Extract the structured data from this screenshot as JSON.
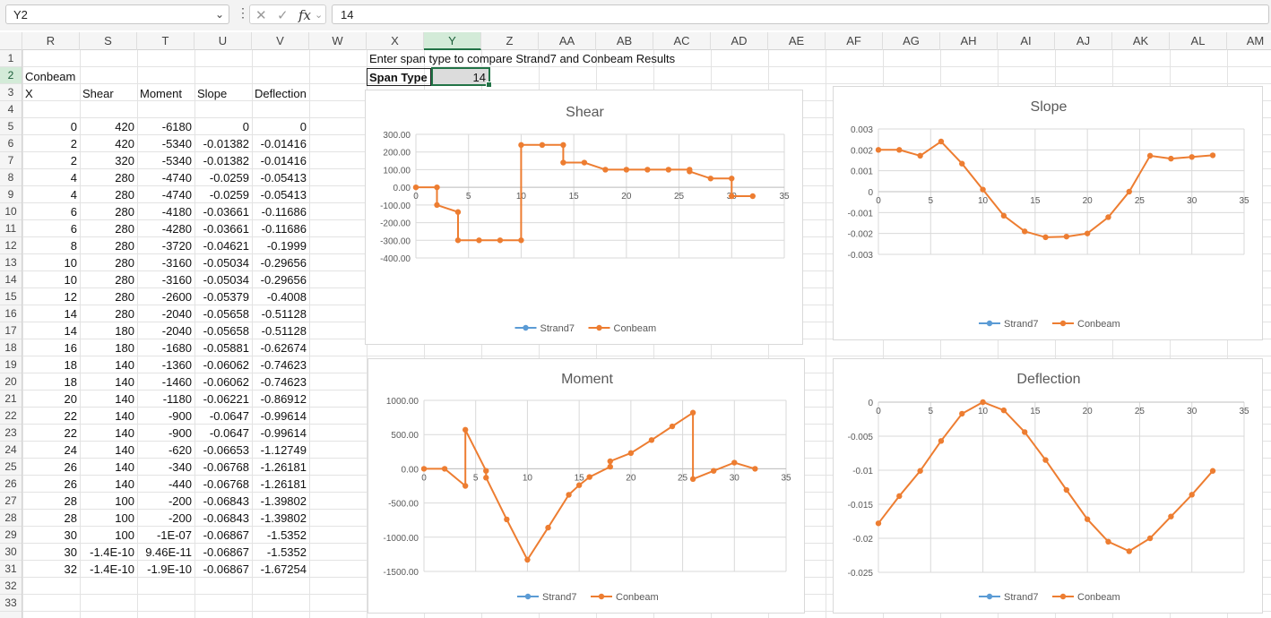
{
  "formula_bar": {
    "name_box": "Y2",
    "formula": "14",
    "fx_label": "fx"
  },
  "column_headers": [
    "R",
    "S",
    "T",
    "U",
    "V",
    "W",
    "X",
    "Y",
    "Z",
    "AA",
    "AB",
    "AC",
    "AD",
    "AE",
    "AF",
    "AG",
    "AH",
    "AI",
    "AJ",
    "AK",
    "AL",
    "AM"
  ],
  "selected_column": "Y",
  "row_numbers": [
    "1",
    "2",
    "3",
    "4",
    "5",
    "6",
    "7",
    "8",
    "9",
    "10",
    "11",
    "12",
    "13",
    "14",
    "15",
    "16",
    "17",
    "18",
    "19",
    "20",
    "21",
    "22",
    "23",
    "24",
    "25",
    "26",
    "27",
    "28",
    "29",
    "30",
    "31",
    "32",
    "33"
  ],
  "selected_row": "2",
  "sheet": {
    "section_title": "Conbeam",
    "headers": {
      "x": "X",
      "shear": "Shear",
      "moment": "Moment",
      "slope": "Slope",
      "deflection": "Deflection"
    },
    "rows": [
      [
        "0",
        "420",
        "-6180",
        "0",
        "0"
      ],
      [
        "2",
        "420",
        "-5340",
        "-0.01382",
        "-0.01416"
      ],
      [
        "2",
        "320",
        "-5340",
        "-0.01382",
        "-0.01416"
      ],
      [
        "4",
        "280",
        "-4740",
        "-0.0259",
        "-0.05413"
      ],
      [
        "4",
        "280",
        "-4740",
        "-0.0259",
        "-0.05413"
      ],
      [
        "6",
        "280",
        "-4180",
        "-0.03661",
        "-0.11686"
      ],
      [
        "6",
        "280",
        "-4280",
        "-0.03661",
        "-0.11686"
      ],
      [
        "8",
        "280",
        "-3720",
        "-0.04621",
        "-0.1999"
      ],
      [
        "10",
        "280",
        "-3160",
        "-0.05034",
        "-0.29656"
      ],
      [
        "10",
        "280",
        "-3160",
        "-0.05034",
        "-0.29656"
      ],
      [
        "12",
        "280",
        "-2600",
        "-0.05379",
        "-0.4008"
      ],
      [
        "14",
        "280",
        "-2040",
        "-0.05658",
        "-0.51128"
      ],
      [
        "14",
        "180",
        "-2040",
        "-0.05658",
        "-0.51128"
      ],
      [
        "16",
        "180",
        "-1680",
        "-0.05881",
        "-0.62674"
      ],
      [
        "18",
        "140",
        "-1360",
        "-0.06062",
        "-0.74623"
      ],
      [
        "18",
        "140",
        "-1460",
        "-0.06062",
        "-0.74623"
      ],
      [
        "20",
        "140",
        "-1180",
        "-0.06221",
        "-0.86912"
      ],
      [
        "22",
        "140",
        "-900",
        "-0.0647",
        "-0.99614"
      ],
      [
        "22",
        "140",
        "-900",
        "-0.0647",
        "-0.99614"
      ],
      [
        "24",
        "140",
        "-620",
        "-0.06653",
        "-1.12749"
      ],
      [
        "26",
        "140",
        "-340",
        "-0.06768",
        "-1.26181"
      ],
      [
        "26",
        "140",
        "-440",
        "-0.06768",
        "-1.26181"
      ],
      [
        "28",
        "100",
        "-200",
        "-0.06843",
        "-1.39802"
      ],
      [
        "28",
        "100",
        "-200",
        "-0.06843",
        "-1.39802"
      ],
      [
        "30",
        "100",
        "-1E-07",
        "-0.06867",
        "-1.5352"
      ],
      [
        "30",
        "-1.4E-10",
        "9.46E-11",
        "-0.06867",
        "-1.5352"
      ],
      [
        "32",
        "-1.4E-10",
        "-1.9E-10",
        "-0.06867",
        "-1.67254"
      ]
    ],
    "instruction": "Enter span type to compare Strand7 and Conbeam Results",
    "span_type_label": "Span Type",
    "span_type_value": "14"
  },
  "colors": {
    "strand7": "#5b9bd5",
    "conbeam": "#ed7d31",
    "selection": "#217346"
  },
  "chart_data": [
    {
      "type": "line",
      "title": "Shear",
      "xlim": [
        0,
        35
      ],
      "xticks": [
        0,
        5,
        10,
        15,
        20,
        25,
        30,
        35
      ],
      "ylim": [
        -400,
        300
      ],
      "yticks": [
        -400,
        -300,
        -200,
        -100,
        0,
        100,
        200,
        300
      ],
      "ytick_labels": [
        "-400.00",
        "-300.00",
        "-200.00",
        "-100.00",
        "0.00",
        "100.00",
        "200.00",
        "300.00"
      ],
      "legend": "bottom",
      "grid": true,
      "series": [
        {
          "name": "Strand7",
          "x": [],
          "y": []
        },
        {
          "name": "Conbeam",
          "x": [
            0,
            2,
            2,
            4,
            4,
            6,
            8,
            10,
            10,
            12,
            14,
            14,
            16,
            18,
            20,
            22,
            24,
            26,
            26,
            28,
            30,
            30,
            32
          ],
          "y": [
            0,
            0,
            -100,
            -140,
            -300,
            -300,
            -300,
            -300,
            240,
            240,
            240,
            140,
            140,
            100,
            100,
            100,
            100,
            100,
            90,
            50,
            50,
            -50,
            -50
          ]
        }
      ]
    },
    {
      "type": "line",
      "title": "Slope",
      "xlim": [
        0,
        35
      ],
      "xticks": [
        0,
        5,
        10,
        15,
        20,
        25,
        30,
        35
      ],
      "ylim": [
        -0.003,
        0.003
      ],
      "yticks": [
        -0.003,
        -0.002,
        -0.001,
        0,
        0.001,
        0.002,
        0.003
      ],
      "ytick_labels": [
        "-0.003",
        "-0.002",
        "-0.001",
        "0",
        "0.001",
        "0.002",
        "0.003"
      ],
      "legend": "bottom",
      "grid": true,
      "series": [
        {
          "name": "Strand7",
          "x": [],
          "y": []
        },
        {
          "name": "Conbeam",
          "x": [
            0,
            2,
            4,
            6,
            8,
            10,
            12,
            14,
            16,
            18,
            20,
            22,
            24,
            26,
            28,
            30,
            32
          ],
          "y": [
            0.002,
            0.002,
            0.00172,
            0.0024,
            0.00134,
            0.0001,
            -0.00115,
            -0.0019,
            -0.00218,
            -0.00215,
            -0.002,
            -0.00122,
            0,
            0.00172,
            0.00158,
            0.00166,
            0.00174
          ]
        }
      ]
    },
    {
      "type": "line",
      "title": "Moment",
      "xlim": [
        0,
        35
      ],
      "xticks": [
        0,
        5,
        10,
        15,
        20,
        25,
        30,
        35
      ],
      "ylim": [
        -1500,
        1000
      ],
      "yticks": [
        -1500,
        -1000,
        -500,
        0,
        500,
        1000
      ],
      "ytick_labels": [
        "-1500.00",
        "-1000.00",
        "-500.00",
        "0.00",
        "500.00",
        "1000.00"
      ],
      "legend": "bottom",
      "grid": true,
      "series": [
        {
          "name": "Strand7",
          "x": [],
          "y": []
        },
        {
          "name": "Conbeam",
          "x": [
            0,
            2,
            4,
            4,
            6,
            6,
            8,
            10,
            12,
            14,
            15,
            16,
            18,
            18,
            20,
            22,
            24,
            26,
            26,
            28,
            30,
            32
          ],
          "y": [
            0,
            0,
            -250,
            570,
            -30,
            -130,
            -740,
            -1330,
            -860,
            -380,
            -240,
            -120,
            30,
            110,
            230,
            420,
            620,
            820,
            -150,
            -30,
            90,
            0
          ]
        }
      ]
    },
    {
      "type": "line",
      "title": "Deflection",
      "xlim": [
        0,
        35
      ],
      "xticks": [
        0,
        5,
        10,
        15,
        20,
        25,
        30,
        35
      ],
      "ylim": [
        -0.025,
        0
      ],
      "yticks": [
        -0.025,
        -0.02,
        -0.015,
        -0.01,
        -0.005,
        0
      ],
      "ytick_labels": [
        "-0.025",
        "-0.02",
        "-0.015",
        "-0.01",
        "-0.005",
        "0"
      ],
      "legend": "bottom",
      "grid": true,
      "series": [
        {
          "name": "Strand7",
          "x": [],
          "y": []
        },
        {
          "name": "Conbeam",
          "x": [
            0,
            2,
            4,
            6,
            8,
            10,
            12,
            14,
            16,
            18,
            20,
            22,
            24,
            26,
            28,
            30,
            32
          ],
          "y": [
            -0.0178,
            -0.0138,
            -0.0101,
            -0.0057,
            -0.0017,
            0,
            -0.0012,
            -0.0044,
            -0.0085,
            -0.0129,
            -0.0172,
            -0.0205,
            -0.0219,
            -0.02,
            -0.0168,
            -0.0136,
            -0.0101
          ]
        }
      ]
    }
  ]
}
